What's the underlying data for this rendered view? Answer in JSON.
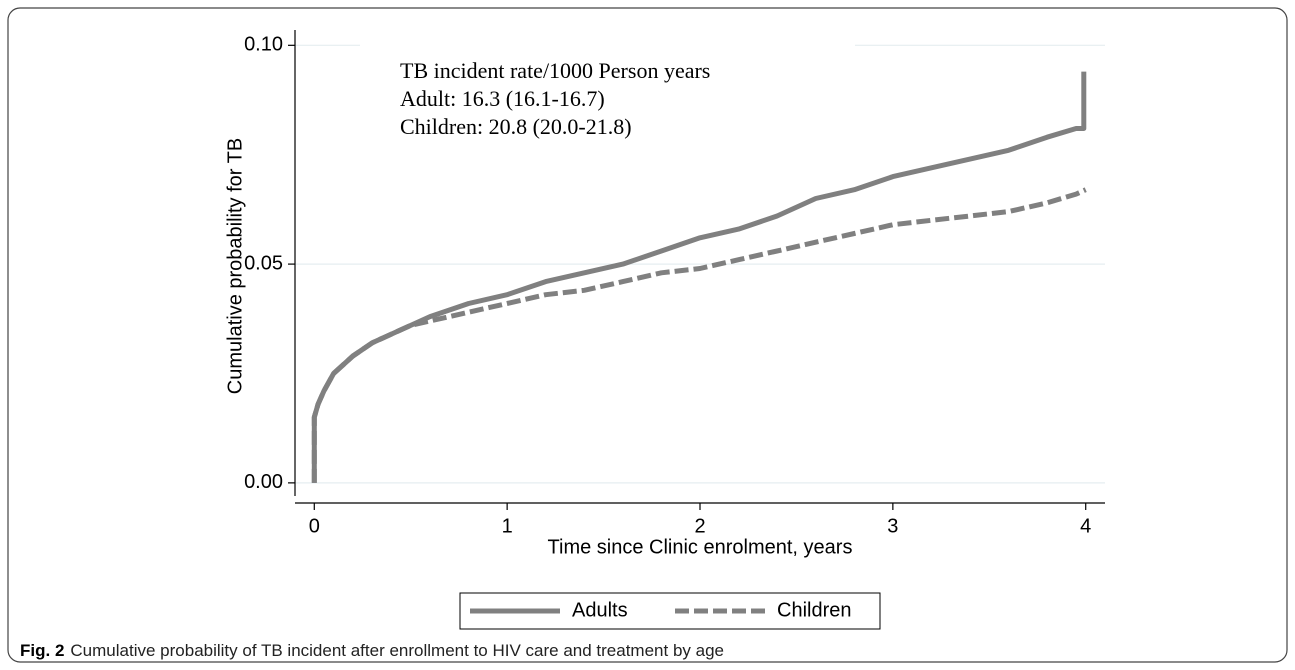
{
  "chart_data": {
    "type": "line",
    "ylabel": "Cumulative probability for TB",
    "xlabel": "Time since Clinic enrolment, years",
    "annotations": [
      "TB incident rate/1000 Person years",
      "Adult:  16.3 (16.1-16.7)",
      "Children: 20.8 (20.0-21.8)"
    ],
    "caption": {
      "label": "Fig. 2",
      "text": "Cumulative probability of TB incident after enrollment to HIV care and treatment by age"
    },
    "xlim": [
      -0.1,
      4.1
    ],
    "ylim": [
      -0.003,
      0.1035
    ],
    "xticks": [
      0,
      1,
      2,
      3,
      4
    ],
    "yticks": [
      {
        "value": 0,
        "label": "0.00"
      },
      {
        "value": 0.05,
        "label": "0.05"
      },
      {
        "value": 0.1,
        "label": "0.10"
      }
    ],
    "grid": true,
    "legend": "bottom",
    "series": [
      {
        "name": "Adults",
        "color": "#808080",
        "dash": false,
        "x": [
          0,
          0,
          0.02,
          0.05,
          0.1,
          0.2,
          0.3,
          0.4,
          0.5,
          0.6,
          0.8,
          1.0,
          1.2,
          1.4,
          1.6,
          1.8,
          2.0,
          2.2,
          2.4,
          2.6,
          2.8,
          3.0,
          3.2,
          3.4,
          3.6,
          3.8,
          3.95,
          3.99,
          3.99
        ],
        "values": [
          0,
          0.015,
          0.018,
          0.021,
          0.025,
          0.029,
          0.032,
          0.034,
          0.036,
          0.038,
          0.041,
          0.043,
          0.046,
          0.048,
          0.05,
          0.053,
          0.056,
          0.058,
          0.061,
          0.065,
          0.067,
          0.07,
          0.072,
          0.074,
          0.076,
          0.079,
          0.081,
          0.081,
          0.094
        ]
      },
      {
        "name": "Children",
        "color": "#808080",
        "dash": true,
        "x": [
          0,
          0,
          0.02,
          0.05,
          0.1,
          0.2,
          0.3,
          0.4,
          0.5,
          0.6,
          0.8,
          1.0,
          1.2,
          1.4,
          1.6,
          1.8,
          2.0,
          2.2,
          2.4,
          2.6,
          2.8,
          3.0,
          3.2,
          3.4,
          3.6,
          3.8,
          3.95,
          4.0
        ],
        "values": [
          0,
          0.015,
          0.018,
          0.021,
          0.025,
          0.029,
          0.032,
          0.034,
          0.036,
          0.037,
          0.039,
          0.041,
          0.043,
          0.044,
          0.046,
          0.048,
          0.049,
          0.051,
          0.053,
          0.055,
          0.057,
          0.059,
          0.06,
          0.061,
          0.062,
          0.064,
          0.066,
          0.067
        ]
      }
    ]
  }
}
